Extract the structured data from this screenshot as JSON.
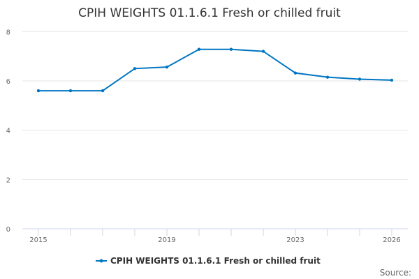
{
  "chart_data": {
    "type": "line",
    "title": "CPIH WEIGHTS 01.1.6.1 Fresh or chilled fruit",
    "x": [
      2015,
      2016,
      2017,
      2018,
      2019,
      2020,
      2021,
      2022,
      2023,
      2024,
      2025,
      2026
    ],
    "x_tick_labels": [
      "2015",
      "2019",
      "2023",
      "2026"
    ],
    "y_tick_labels": [
      "0",
      "2",
      "4",
      "6",
      "8"
    ],
    "ylim": [
      0,
      8
    ],
    "xlim": [
      2015,
      2026
    ],
    "grid": "horizontal",
    "legend_placement": "bottom",
    "series": [
      {
        "name": "CPIH WEIGHTS 01.1.6.1 Fresh or chilled fruit",
        "color": "#0075c2",
        "values": [
          5.6,
          5.6,
          5.6,
          6.5,
          6.56,
          7.28,
          7.28,
          7.2,
          6.32,
          6.15,
          6.07,
          6.03
        ]
      }
    ],
    "credit": "Source:"
  }
}
